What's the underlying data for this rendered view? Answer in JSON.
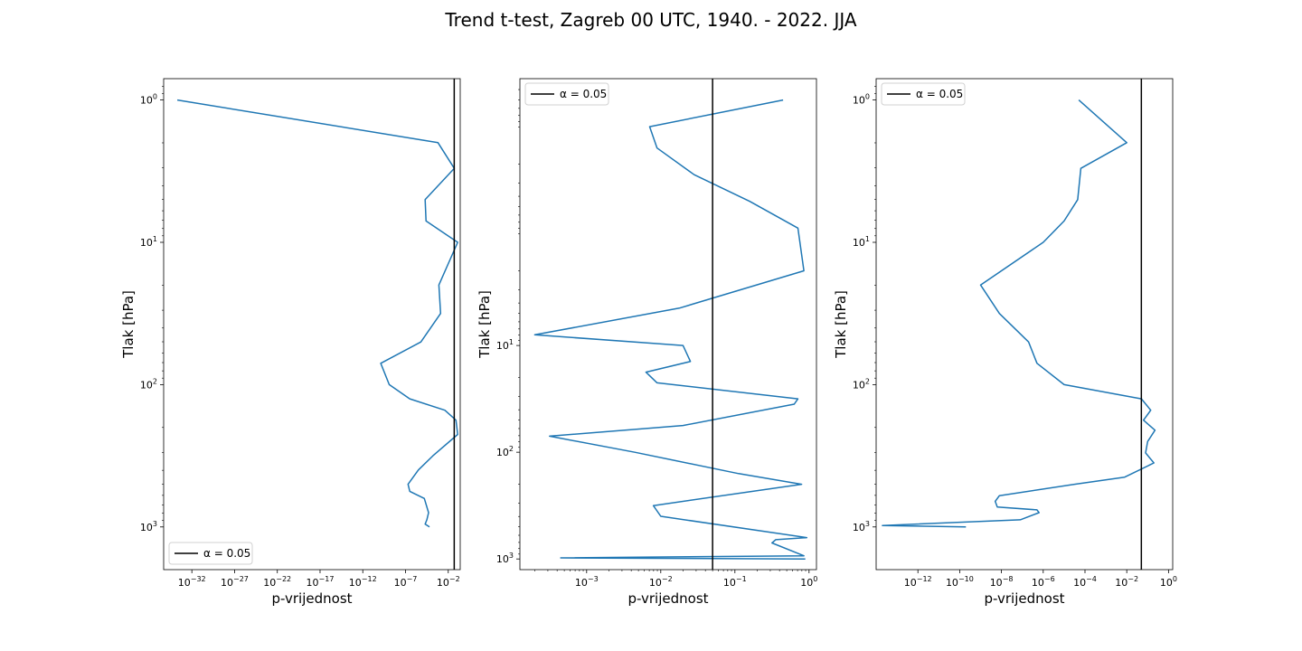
{
  "figure": {
    "suptitle": "Trend t-test, Zagreb 00 UTC, 1940. - 2022. JJA"
  },
  "colors": {
    "line": "#1f77b4",
    "alpha_line": "#000000",
    "frame": "#000000"
  },
  "chart_data": [
    {
      "type": "line",
      "orientation": "vertical-profile",
      "xscale": "log",
      "yscale": "log",
      "yinverted": true,
      "xlabel": "p-vrijednost",
      "ylabel": "Tlak [hPa]",
      "xlim_log10": [
        -35.3,
        -0.6
      ],
      "ylim": [
        1000,
        1.0
      ],
      "ylim_log10": [
        3.3,
        -0.15
      ],
      "xticks": [
        {
          "exp": -32,
          "label": "10^-32"
        },
        {
          "exp": -27,
          "label": "10^-27"
        },
        {
          "exp": -22,
          "label": "10^-22"
        },
        {
          "exp": -17,
          "label": "10^-17"
        },
        {
          "exp": -12,
          "label": "10^-12"
        },
        {
          "exp": -7,
          "label": "10^-7"
        },
        {
          "exp": -2,
          "label": "10^-2"
        }
      ],
      "yticks": [
        {
          "exp": 0,
          "label": "10^0"
        },
        {
          "exp": 1,
          "label": "10^1"
        },
        {
          "exp": 2,
          "label": "10^2"
        },
        {
          "exp": 3,
          "label": "10^3"
        }
      ],
      "legend": {
        "label": "α = 0.05",
        "loc": "lower left"
      },
      "alpha": 0.05,
      "grid": false,
      "series": [
        {
          "log10_p": [
            -33.7,
            -3.2,
            -1.3,
            -4.7,
            -4.6,
            -0.9,
            -3.1,
            -2.9,
            -5.2,
            -9.9,
            -8.9,
            -6.5,
            -2.4,
            -1.1,
            -0.9,
            -3.8,
            -5.5,
            -6.7,
            -6.5,
            -4.8,
            -4.3,
            -4.5,
            -4.7,
            -4.2
          ],
          "log10_hPa": [
            0.0,
            0.3,
            0.48,
            0.7,
            0.85,
            1.0,
            1.3,
            1.5,
            1.7,
            1.85,
            2.0,
            2.1,
            2.18,
            2.25,
            2.35,
            2.5,
            2.6,
            2.7,
            2.75,
            2.8,
            2.9,
            2.95,
            2.98,
            3.0
          ]
        }
      ]
    },
    {
      "type": "line",
      "orientation": "vertical-profile",
      "xscale": "log",
      "yscale": "log",
      "yinverted": true,
      "xlabel": "p-vrijednost",
      "ylabel": "Tlak [hPa]",
      "xlim_log10": [
        -3.9,
        0.1
      ],
      "ylim_log10": [
        3.1,
        -1.5
      ],
      "xticks": [
        {
          "exp": -3,
          "label": "10^-3"
        },
        {
          "exp": -2,
          "label": "10^-2"
        },
        {
          "exp": -1,
          "label": "10^-1"
        },
        {
          "exp": 0,
          "label": "10^0"
        }
      ],
      "yticks": [
        {
          "exp": 1,
          "label": "10^1"
        },
        {
          "exp": 2,
          "label": "10^2"
        },
        {
          "exp": 3,
          "label": "10^3"
        }
      ],
      "legend": {
        "label": "α = 0.05",
        "loc": "upper left"
      },
      "alpha": 0.05,
      "grid": false,
      "series": [
        {
          "log10_p": [
            -0.35,
            -2.15,
            -2.05,
            -1.55,
            -0.8,
            -0.15,
            -0.07,
            -1.75,
            -3.7,
            -1.7,
            -1.6,
            -2.2,
            -2.05,
            -0.15,
            -0.2,
            -1.7,
            -3.5,
            -2.35,
            -0.95,
            -0.1,
            -2.1,
            -2.0,
            -0.03,
            -0.45,
            -0.5,
            -0.07,
            -3.35,
            -0.05
          ],
          "log10_hPa": [
            -1.3,
            -1.05,
            -0.85,
            -0.6,
            -0.35,
            -0.1,
            0.3,
            0.65,
            0.9,
            1.0,
            1.15,
            1.25,
            1.35,
            1.5,
            1.55,
            1.75,
            1.85,
            2.0,
            2.2,
            2.3,
            2.5,
            2.6,
            2.8,
            2.82,
            2.85,
            2.97,
            2.99,
            3.0
          ]
        }
      ]
    },
    {
      "type": "line",
      "orientation": "vertical-profile",
      "xscale": "log",
      "yscale": "log",
      "yinverted": true,
      "xlabel": "p-vrijednost",
      "ylabel": "Tlak [hPa]",
      "xlim_log10": [
        -14.0,
        0.2
      ],
      "ylim_log10": [
        3.3,
        -0.15
      ],
      "xticks": [
        {
          "exp": -12,
          "label": "10^-12"
        },
        {
          "exp": -10,
          "label": "10^-10"
        },
        {
          "exp": -8,
          "label": "10^-8"
        },
        {
          "exp": -6,
          "label": "10^-6"
        },
        {
          "exp": -4,
          "label": "10^-4"
        },
        {
          "exp": -2,
          "label": "10^-2"
        },
        {
          "exp": 0,
          "label": "10^0"
        }
      ],
      "yticks": [
        {
          "exp": 0,
          "label": "10^0"
        },
        {
          "exp": 1,
          "label": "10^1"
        },
        {
          "exp": 2,
          "label": "10^2"
        },
        {
          "exp": 3,
          "label": "10^3"
        }
      ],
      "legend": {
        "label": "α = 0.05",
        "loc": "upper left"
      },
      "alpha": 0.05,
      "grid": false,
      "series": [
        {
          "log10_p": [
            -4.3,
            -2.0,
            -4.2,
            -4.35,
            -5.0,
            -6.0,
            -9.0,
            -8.1,
            -6.7,
            -6.3,
            -5.0,
            -1.3,
            -0.85,
            -1.2,
            -0.65,
            -1.0,
            -1.1,
            -0.7,
            -2.1,
            -4.5,
            -8.1,
            -8.3,
            -8.2,
            -6.3,
            -6.2,
            -7.1,
            -13.7,
            -9.7
          ],
          "log10_hPa": [
            0.0,
            0.3,
            0.48,
            0.7,
            0.85,
            1.0,
            1.3,
            1.5,
            1.7,
            1.85,
            2.0,
            2.1,
            2.18,
            2.25,
            2.32,
            2.4,
            2.48,
            2.55,
            2.65,
            2.7,
            2.78,
            2.82,
            2.86,
            2.88,
            2.9,
            2.95,
            2.99,
            3.0
          ]
        }
      ]
    }
  ]
}
